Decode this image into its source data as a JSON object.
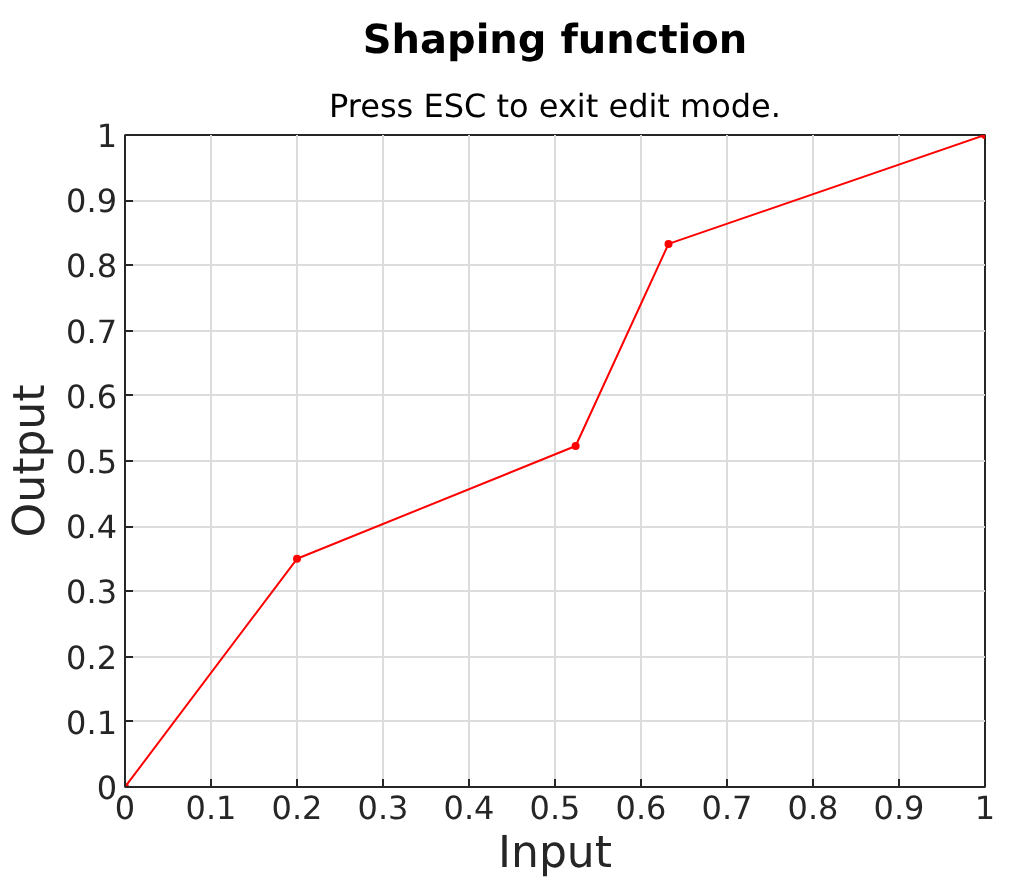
{
  "chart_data": {
    "type": "line",
    "title": "Shaping function",
    "subtitle": "Press ESC to exit edit mode.",
    "xlabel": "Input",
    "ylabel": "Output",
    "x": [
      0,
      0.2,
      0.524,
      0.632,
      1
    ],
    "series": [
      {
        "color": "#ff0000",
        "values": [
          0,
          0.35,
          0.523,
          0.833,
          1
        ]
      }
    ],
    "xlim": [
      0,
      1
    ],
    "ylim": [
      0,
      1
    ],
    "xticks": [
      0,
      0.1,
      0.2,
      0.3,
      0.4,
      0.5,
      0.6,
      0.7,
      0.8,
      0.9,
      1
    ],
    "yticks": [
      0,
      0.1,
      0.2,
      0.3,
      0.4,
      0.5,
      0.6,
      0.7,
      0.8,
      0.9,
      1
    ],
    "grid": true,
    "marker": "circle",
    "line_style": "solid"
  }
}
